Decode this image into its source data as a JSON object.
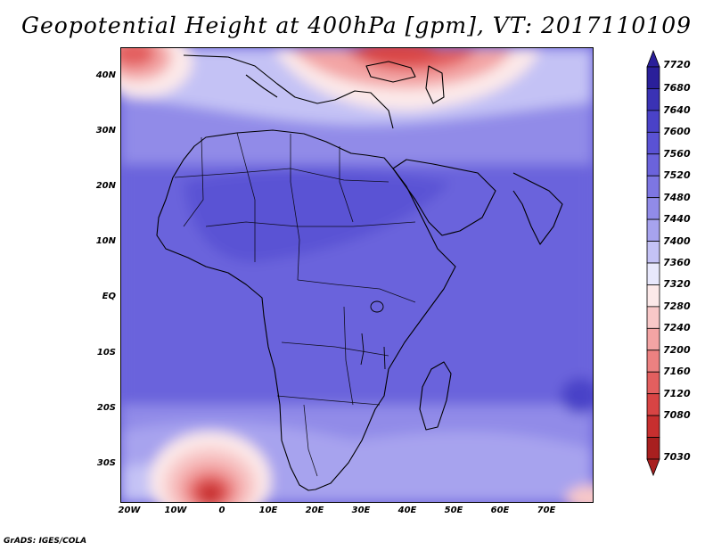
{
  "title": "Geopotential Height at 400hPa [gpm], VT: 2017110109",
  "map": {
    "lat_labels": [
      "40N",
      "30N",
      "20N",
      "10N",
      "EQ",
      "10S",
      "20S",
      "30S"
    ],
    "lon_labels": [
      "20W",
      "10W",
      "0",
      "10E",
      "20E",
      "30E",
      "40E",
      "50E",
      "60E",
      "70E"
    ],
    "lon_range": [
      -22,
      80
    ],
    "lat_range": [
      -37,
      45
    ]
  },
  "colorbar": {
    "levels": [
      "7720",
      "7680",
      "7640",
      "7600",
      "7560",
      "7520",
      "7480",
      "7440",
      "7400",
      "7360",
      "7320",
      "7280",
      "7240",
      "7200",
      "7160",
      "7120",
      "7080",
      "7030"
    ],
    "colors": [
      "#2a1f9a",
      "#3a32b4",
      "#4a42c8",
      "#5a52d4",
      "#6b63dc",
      "#7d76e2",
      "#918be8",
      "#a7a3ee",
      "#c4c2f5",
      "#e8e8fc",
      "#fce9e9",
      "#f8c8c8",
      "#f3a4a4",
      "#ec8181",
      "#e35f5f",
      "#d84444",
      "#c72f2f",
      "#a81f1f"
    ]
  },
  "credit": "GrADS: IGES/COLA"
}
